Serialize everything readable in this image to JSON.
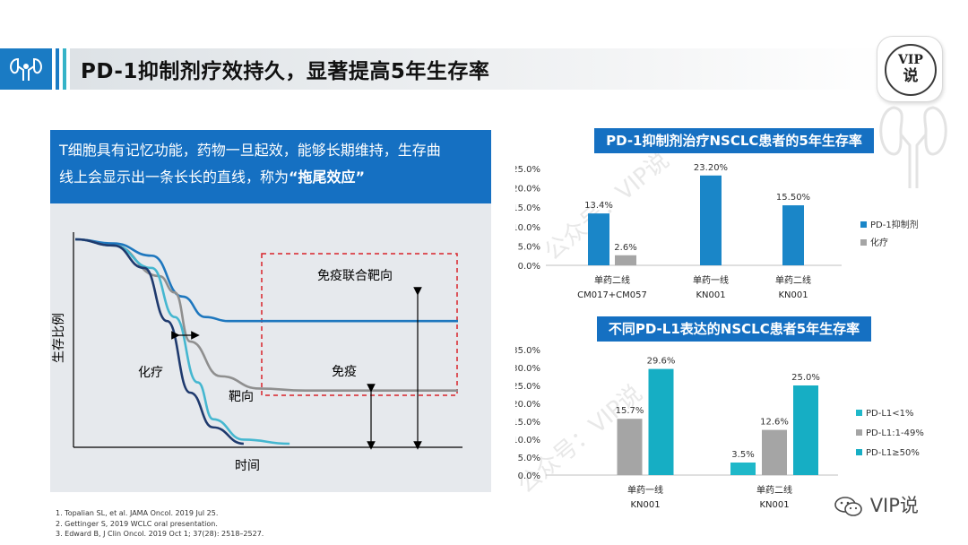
{
  "header": {
    "title": "PD-1抑制剂疗效持久，显著提高5年生存率",
    "badge_line1": "VIP",
    "badge_line2": "说"
  },
  "callout": {
    "text_line1": "T细胞具有记忆功能，药物一旦起效，能够长期维持，生存曲",
    "text_line2_prefix": "线上会显示出一条长长的直线，称为",
    "text_highlight": "“拖尾效应”"
  },
  "chart_data": [
    {
      "type": "line",
      "title": "",
      "xlabel": "时间",
      "ylabel": "生存比例",
      "series": [
        {
          "name": "免疫联合靶向",
          "color": "#1e77be",
          "x": [
            0,
            10,
            20,
            28,
            34,
            40,
            60,
            100
          ],
          "y": [
            1.0,
            0.98,
            0.92,
            0.72,
            0.62,
            0.6,
            0.6,
            0.6
          ]
        },
        {
          "name": "免疫",
          "color": "#8f8f8f",
          "x": [
            0,
            10,
            22,
            26,
            30,
            38,
            48,
            60,
            100
          ],
          "y": [
            1.0,
            0.97,
            0.82,
            0.74,
            0.5,
            0.33,
            0.27,
            0.26,
            0.26
          ]
        },
        {
          "name": "靶向",
          "color": "#45b7d0",
          "x": [
            0,
            10,
            20,
            26,
            32,
            36,
            44,
            56
          ],
          "y": [
            1.0,
            0.97,
            0.86,
            0.62,
            0.3,
            0.12,
            0.02,
            0.0
          ]
        },
        {
          "name": "化疗",
          "color": "#1f3a6e",
          "x": [
            0,
            10,
            18,
            24,
            30,
            36,
            44
          ],
          "y": [
            1.0,
            0.97,
            0.86,
            0.6,
            0.25,
            0.08,
            0.0
          ]
        }
      ],
      "annotations": [
        "免疫联合靶向",
        "免疫",
        "靶向",
        "化疗"
      ]
    },
    {
      "type": "bar",
      "title": "PD-1抑制剂治疗NSCLC患者的5年生存率",
      "categories": [
        [
          "单药二线",
          "CM017+CM057"
        ],
        [
          "单药一线",
          "KN001"
        ],
        [
          "单药二线",
          "KN001"
        ]
      ],
      "series": [
        {
          "name": "PD-1抑制剂",
          "color": "#1a86c8",
          "values": [
            13.4,
            23.2,
            15.5
          ],
          "labels": [
            "13.4%",
            "23.20%",
            "15.50%"
          ]
        },
        {
          "name": "化疗",
          "color": "#a5a5a5",
          "values": [
            2.6,
            null,
            null
          ],
          "labels": [
            "2.6%",
            "",
            ""
          ]
        }
      ],
      "ylim": [
        0,
        25
      ],
      "yticks": [
        "0.0%",
        "5.0%",
        "10.0%",
        "15.0%",
        "20.0%",
        "25.0%"
      ]
    },
    {
      "type": "bar",
      "title": "不同PD-L1表达的NSCLC患者5年生存率",
      "categories": [
        [
          "单药一线",
          "KN001"
        ],
        [
          "单药二线",
          "KN001"
        ]
      ],
      "series": [
        {
          "name": "PD-L1<1%",
          "color": "#1fb8c9",
          "values": [
            null,
            3.5
          ],
          "labels": [
            "",
            "3.5%"
          ]
        },
        {
          "name": "PD-L1:1-49%",
          "color": "#a5a5a5",
          "values": [
            15.7,
            12.6
          ],
          "labels": [
            "15.7%",
            "12.6%"
          ]
        },
        {
          "name": "PD-L1≥50%",
          "color": "#16aec4",
          "values": [
            29.6,
            25.0
          ],
          "labels": [
            "29.6%",
            "25.0%"
          ]
        }
      ],
      "ylim": [
        0,
        35
      ],
      "yticks": [
        "0.0%",
        "5.0%",
        "10.0%",
        "15.0%",
        "20.0%",
        "25.0%",
        "30.0%",
        "35.0%"
      ]
    }
  ],
  "references": [
    "1. Topalian SL, et al. JAMA Oncol. 2019 Jul 25.",
    "2. Gettinger S, 2019 WCLC oral presentation.",
    "3. Edward B, J Clin Oncol. 2019 Oct 1; 37(28): 2518–2527."
  ],
  "watermark": {
    "bottom": "VIP说",
    "faint": "公众号：VIP说"
  },
  "colors": {
    "primary": "#1570c2",
    "accent_teal": "#36b3c7"
  }
}
